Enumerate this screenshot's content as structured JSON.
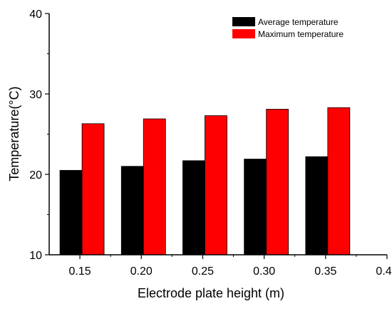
{
  "chart_data": {
    "type": "bar",
    "title": "",
    "xlabel": "Electrode plate height (m)",
    "ylabel": "Temperature(°C)",
    "xlim": [
      0.125,
      0.4
    ],
    "ylim": [
      10,
      40
    ],
    "x_ticks": [
      "0.15",
      "0.20",
      "0.25",
      "0.30",
      "0.35",
      "0.40"
    ],
    "y_ticks": [
      "10",
      "20",
      "30",
      "40"
    ],
    "grid": false,
    "legend_position": "top-right",
    "x": [
      0.15,
      0.2,
      0.25,
      0.3,
      0.35
    ],
    "series": [
      {
        "name": "Average temperature",
        "color": "#000000",
        "values": [
          20.5,
          21.0,
          21.7,
          21.9,
          22.2
        ]
      },
      {
        "name": "Maximum temperature",
        "color": "#ff0000",
        "values": [
          26.3,
          26.9,
          27.3,
          28.1,
          28.3
        ]
      }
    ]
  }
}
